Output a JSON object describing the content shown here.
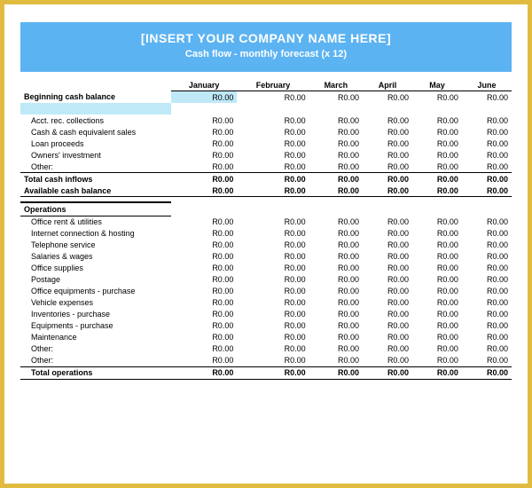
{
  "header": {
    "title": "[INSERT YOUR COMPANY NAME HERE]",
    "subtitle": "Cash flow - monthly forecast (x 12)"
  },
  "months": [
    "January",
    "February",
    "March",
    "April",
    "May",
    "June"
  ],
  "beginning_label": "Beginning cash balance",
  "beginning": [
    "R0.00",
    "R0.00",
    "R0.00",
    "R0.00",
    "R0.00",
    "R0.00"
  ],
  "inflows": [
    {
      "label": "Acct. rec. collections",
      "vals": [
        "R0.00",
        "R0.00",
        "R0.00",
        "R0.00",
        "R0.00",
        "R0.00"
      ]
    },
    {
      "label": "Cash & cash equivalent sales",
      "vals": [
        "R0.00",
        "R0.00",
        "R0.00",
        "R0.00",
        "R0.00",
        "R0.00"
      ]
    },
    {
      "label": "Loan proceeds",
      "vals": [
        "R0.00",
        "R0.00",
        "R0.00",
        "R0.00",
        "R0.00",
        "R0.00"
      ]
    },
    {
      "label": "Owners' investment",
      "vals": [
        "R0.00",
        "R0.00",
        "R0.00",
        "R0.00",
        "R0.00",
        "R0.00"
      ]
    },
    {
      "label": "Other:",
      "vals": [
        "R0.00",
        "R0.00",
        "R0.00",
        "R0.00",
        "R0.00",
        "R0.00"
      ]
    }
  ],
  "total_inflows_label": "Total cash inflows",
  "total_inflows": [
    "R0.00",
    "R0.00",
    "R0.00",
    "R0.00",
    "R0.00",
    "R0.00"
  ],
  "avail_label": "Available cash balance",
  "avail": [
    "R0.00",
    "R0.00",
    "R0.00",
    "R0.00",
    "R0.00",
    "R0.00"
  ],
  "ops_title": "Operations",
  "ops": [
    {
      "label": "Office rent & utilities",
      "vals": [
        "R0.00",
        "R0.00",
        "R0.00",
        "R0.00",
        "R0.00",
        "R0.00"
      ]
    },
    {
      "label": "Internet connection & hosting",
      "vals": [
        "R0.00",
        "R0.00",
        "R0.00",
        "R0.00",
        "R0.00",
        "R0.00"
      ]
    },
    {
      "label": "Telephone service",
      "vals": [
        "R0.00",
        "R0.00",
        "R0.00",
        "R0.00",
        "R0.00",
        "R0.00"
      ]
    },
    {
      "label": "Salaries & wages",
      "vals": [
        "R0.00",
        "R0.00",
        "R0.00",
        "R0.00",
        "R0.00",
        "R0.00"
      ]
    },
    {
      "label": "Office supplies",
      "vals": [
        "R0.00",
        "R0.00",
        "R0.00",
        "R0.00",
        "R0.00",
        "R0.00"
      ]
    },
    {
      "label": "Postage",
      "vals": [
        "R0.00",
        "R0.00",
        "R0.00",
        "R0.00",
        "R0.00",
        "R0.00"
      ]
    },
    {
      "label": "Office equipments - purchase",
      "vals": [
        "R0.00",
        "R0.00",
        "R0.00",
        "R0.00",
        "R0.00",
        "R0.00"
      ]
    },
    {
      "label": "Vehicle expenses",
      "vals": [
        "R0.00",
        "R0.00",
        "R0.00",
        "R0.00",
        "R0.00",
        "R0.00"
      ]
    },
    {
      "label": "Inventories - purchase",
      "vals": [
        "R0.00",
        "R0.00",
        "R0.00",
        "R0.00",
        "R0.00",
        "R0.00"
      ]
    },
    {
      "label": "Equipments - purchase",
      "vals": [
        "R0.00",
        "R0.00",
        "R0.00",
        "R0.00",
        "R0.00",
        "R0.00"
      ]
    },
    {
      "label": "Maintenance",
      "vals": [
        "R0.00",
        "R0.00",
        "R0.00",
        "R0.00",
        "R0.00",
        "R0.00"
      ]
    },
    {
      "label": "Other:",
      "vals": [
        "R0.00",
        "R0.00",
        "R0.00",
        "R0.00",
        "R0.00",
        "R0.00"
      ]
    },
    {
      "label": "Other:",
      "vals": [
        "R0.00",
        "R0.00",
        "R0.00",
        "R0.00",
        "R0.00",
        "R0.00"
      ]
    }
  ],
  "total_ops_label": "Total operations",
  "total_ops": [
    "R0.00",
    "R0.00",
    "R0.00",
    "R0.00",
    "R0.00",
    "R0.00"
  ],
  "colors": {
    "frame": "#e0bb40",
    "header_bg": "#5cb3f2",
    "highlight": "#bfe9f7"
  }
}
